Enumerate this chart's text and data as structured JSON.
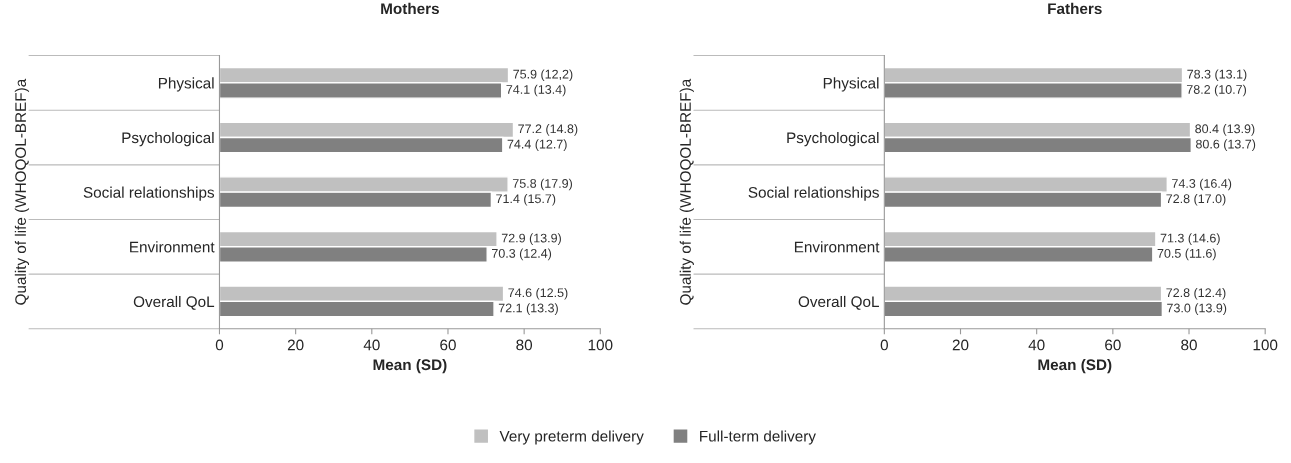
{
  "chart_data": [
    {
      "type": "bar",
      "orientation": "horizontal",
      "title": "Mothers",
      "ylabel": "Quality of life (WHOQOL-BREF)a",
      "xlabel": "Mean (SD)",
      "categories": [
        "Physical",
        "Psychological",
        "Social relationships",
        "Environment",
        "Overall QoL"
      ],
      "series": [
        {
          "name": "Very preterm delivery",
          "color": "#c0c0c0",
          "values": [
            75.9,
            77.2,
            75.8,
            72.9,
            74.6
          ],
          "value_labels": [
            "75.9 (12,2)",
            "77.2 (14.8)",
            "75.8 (17.9)",
            "72.9 (13.9)",
            "74.6 (12.5)"
          ]
        },
        {
          "name": "Full-term delivery",
          "color": "#808080",
          "values": [
            74.1,
            74.4,
            71.4,
            70.3,
            72.1
          ],
          "value_labels": [
            "74.1 (13.4)",
            "74.4 (12.7)",
            "71.4 (15.7)",
            "70.3 (12.4)",
            "72.1 (13.3)"
          ]
        }
      ],
      "xlim": [
        0,
        100
      ],
      "xticks": [
        0,
        20,
        40,
        60,
        80,
        100
      ],
      "grid": false,
      "legend": "bottom"
    },
    {
      "type": "bar",
      "orientation": "horizontal",
      "title": "Fathers",
      "ylabel": "Quality of life (WHOQOL-BREF)a",
      "xlabel": "Mean (SD)",
      "categories": [
        "Physical",
        "Psychological",
        "Social relationships",
        "Environment",
        "Overall QoL"
      ],
      "series": [
        {
          "name": "Very preterm delivery",
          "color": "#c0c0c0",
          "values": [
            78.3,
            80.4,
            74.3,
            71.3,
            72.8
          ],
          "value_labels": [
            "78.3 (13.1)",
            "80.4 (13.9)",
            "74.3 (16.4)",
            "71.3 (14.6)",
            "72.8 (12.4)"
          ]
        },
        {
          "name": "Full-term delivery",
          "color": "#808080",
          "values": [
            78.2,
            80.6,
            72.8,
            70.5,
            73.0
          ],
          "value_labels": [
            "78.2 (10.7)",
            "80.6 (13.7)",
            "72.8 (17.0)",
            "70.5 (11.6)",
            "73.0 (13.9)"
          ]
        }
      ],
      "xlim": [
        0,
        100
      ],
      "xticks": [
        0,
        20,
        40,
        60,
        80,
        100
      ],
      "grid": false,
      "legend": "bottom"
    }
  ]
}
